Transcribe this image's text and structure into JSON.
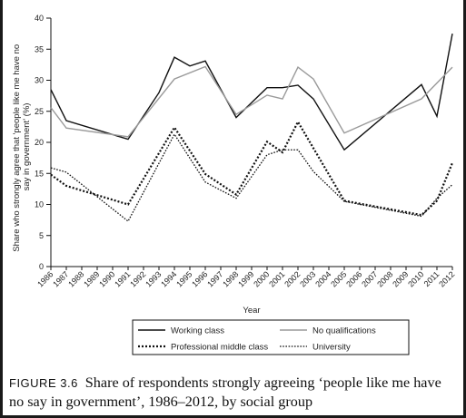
{
  "chart_data": {
    "type": "line",
    "title": "",
    "xlabel": "Year",
    "ylabel": "Share who strongly agree that 'people like me have no say in government' (%)",
    "ylim": [
      0,
      40
    ],
    "yticks": [
      "0",
      "5",
      "10",
      "15",
      "20",
      "25",
      "30",
      "35",
      "40"
    ],
    "categories": [
      "1986",
      "1987",
      "1988",
      "1989",
      "1990",
      "1991",
      "1992",
      "1993",
      "1994",
      "1995",
      "1996",
      "1997",
      "1998",
      "1999",
      "2000",
      "2001",
      "2002",
      "2003",
      "2004",
      "2005",
      "2006",
      "2007",
      "2008",
      "2009",
      "2010",
      "2011",
      "2012"
    ],
    "grid": false,
    "legend_position": "bottom",
    "series": [
      {
        "name": "Working class",
        "style": "solid",
        "color": "#111111",
        "points": [
          [
            1986,
            28.5
          ],
          [
            1987,
            23.5
          ],
          [
            1991,
            20.5
          ],
          [
            1993,
            28
          ],
          [
            1994,
            33.7
          ],
          [
            1995,
            32.3
          ],
          [
            1996,
            33.1
          ],
          [
            1998,
            24
          ],
          [
            2000,
            28.8
          ],
          [
            2001,
            28.8
          ],
          [
            2002,
            29.2
          ],
          [
            2003,
            27
          ],
          [
            2005,
            18.8
          ],
          [
            2010,
            29.3
          ],
          [
            2011,
            24.2
          ],
          [
            2012,
            37.5
          ]
        ]
      },
      {
        "name": "No qualifications",
        "style": "solid",
        "color": "#9a9a9a",
        "points": [
          [
            1986,
            25.6
          ],
          [
            1987,
            22.3
          ],
          [
            1991,
            20.9
          ],
          [
            1994,
            30.2
          ],
          [
            1996,
            32.2
          ],
          [
            1998,
            24.5
          ],
          [
            2000,
            27.6
          ],
          [
            2001,
            27
          ],
          [
            2002,
            32.1
          ],
          [
            2003,
            30.2
          ],
          [
            2005,
            21.5
          ],
          [
            2010,
            27
          ],
          [
            2012,
            32.1
          ]
        ]
      },
      {
        "name": "Professional middle class",
        "style": "dotted-bold",
        "color": "#111111",
        "points": [
          [
            1986,
            14.8
          ],
          [
            1987,
            13
          ],
          [
            1991,
            10
          ],
          [
            1994,
            22.4
          ],
          [
            1996,
            14.9
          ],
          [
            1998,
            11.6
          ],
          [
            2000,
            20.1
          ],
          [
            2001,
            18.4
          ],
          [
            2002,
            23.3
          ],
          [
            2005,
            10.6
          ],
          [
            2010,
            8.3
          ],
          [
            2011,
            10.6
          ],
          [
            2012,
            16.7
          ]
        ]
      },
      {
        "name": "University",
        "style": "dotted",
        "color": "#111111",
        "points": [
          [
            1986,
            15.9
          ],
          [
            1987,
            15.2
          ],
          [
            1991,
            7.3
          ],
          [
            1994,
            21.3
          ],
          [
            1996,
            13.6
          ],
          [
            1998,
            11
          ],
          [
            2000,
            18
          ],
          [
            2001,
            18.8
          ],
          [
            2002,
            18.8
          ],
          [
            2003,
            15.3
          ],
          [
            2005,
            10.5
          ],
          [
            2010,
            8.1
          ],
          [
            2011,
            11
          ],
          [
            2012,
            13.2
          ]
        ]
      }
    ]
  },
  "caption": {
    "label": "FIGURE 3.6",
    "text": "Share of respondents strongly agreeing ‘people like me have no say in government’, 1986–2012, by social group"
  }
}
